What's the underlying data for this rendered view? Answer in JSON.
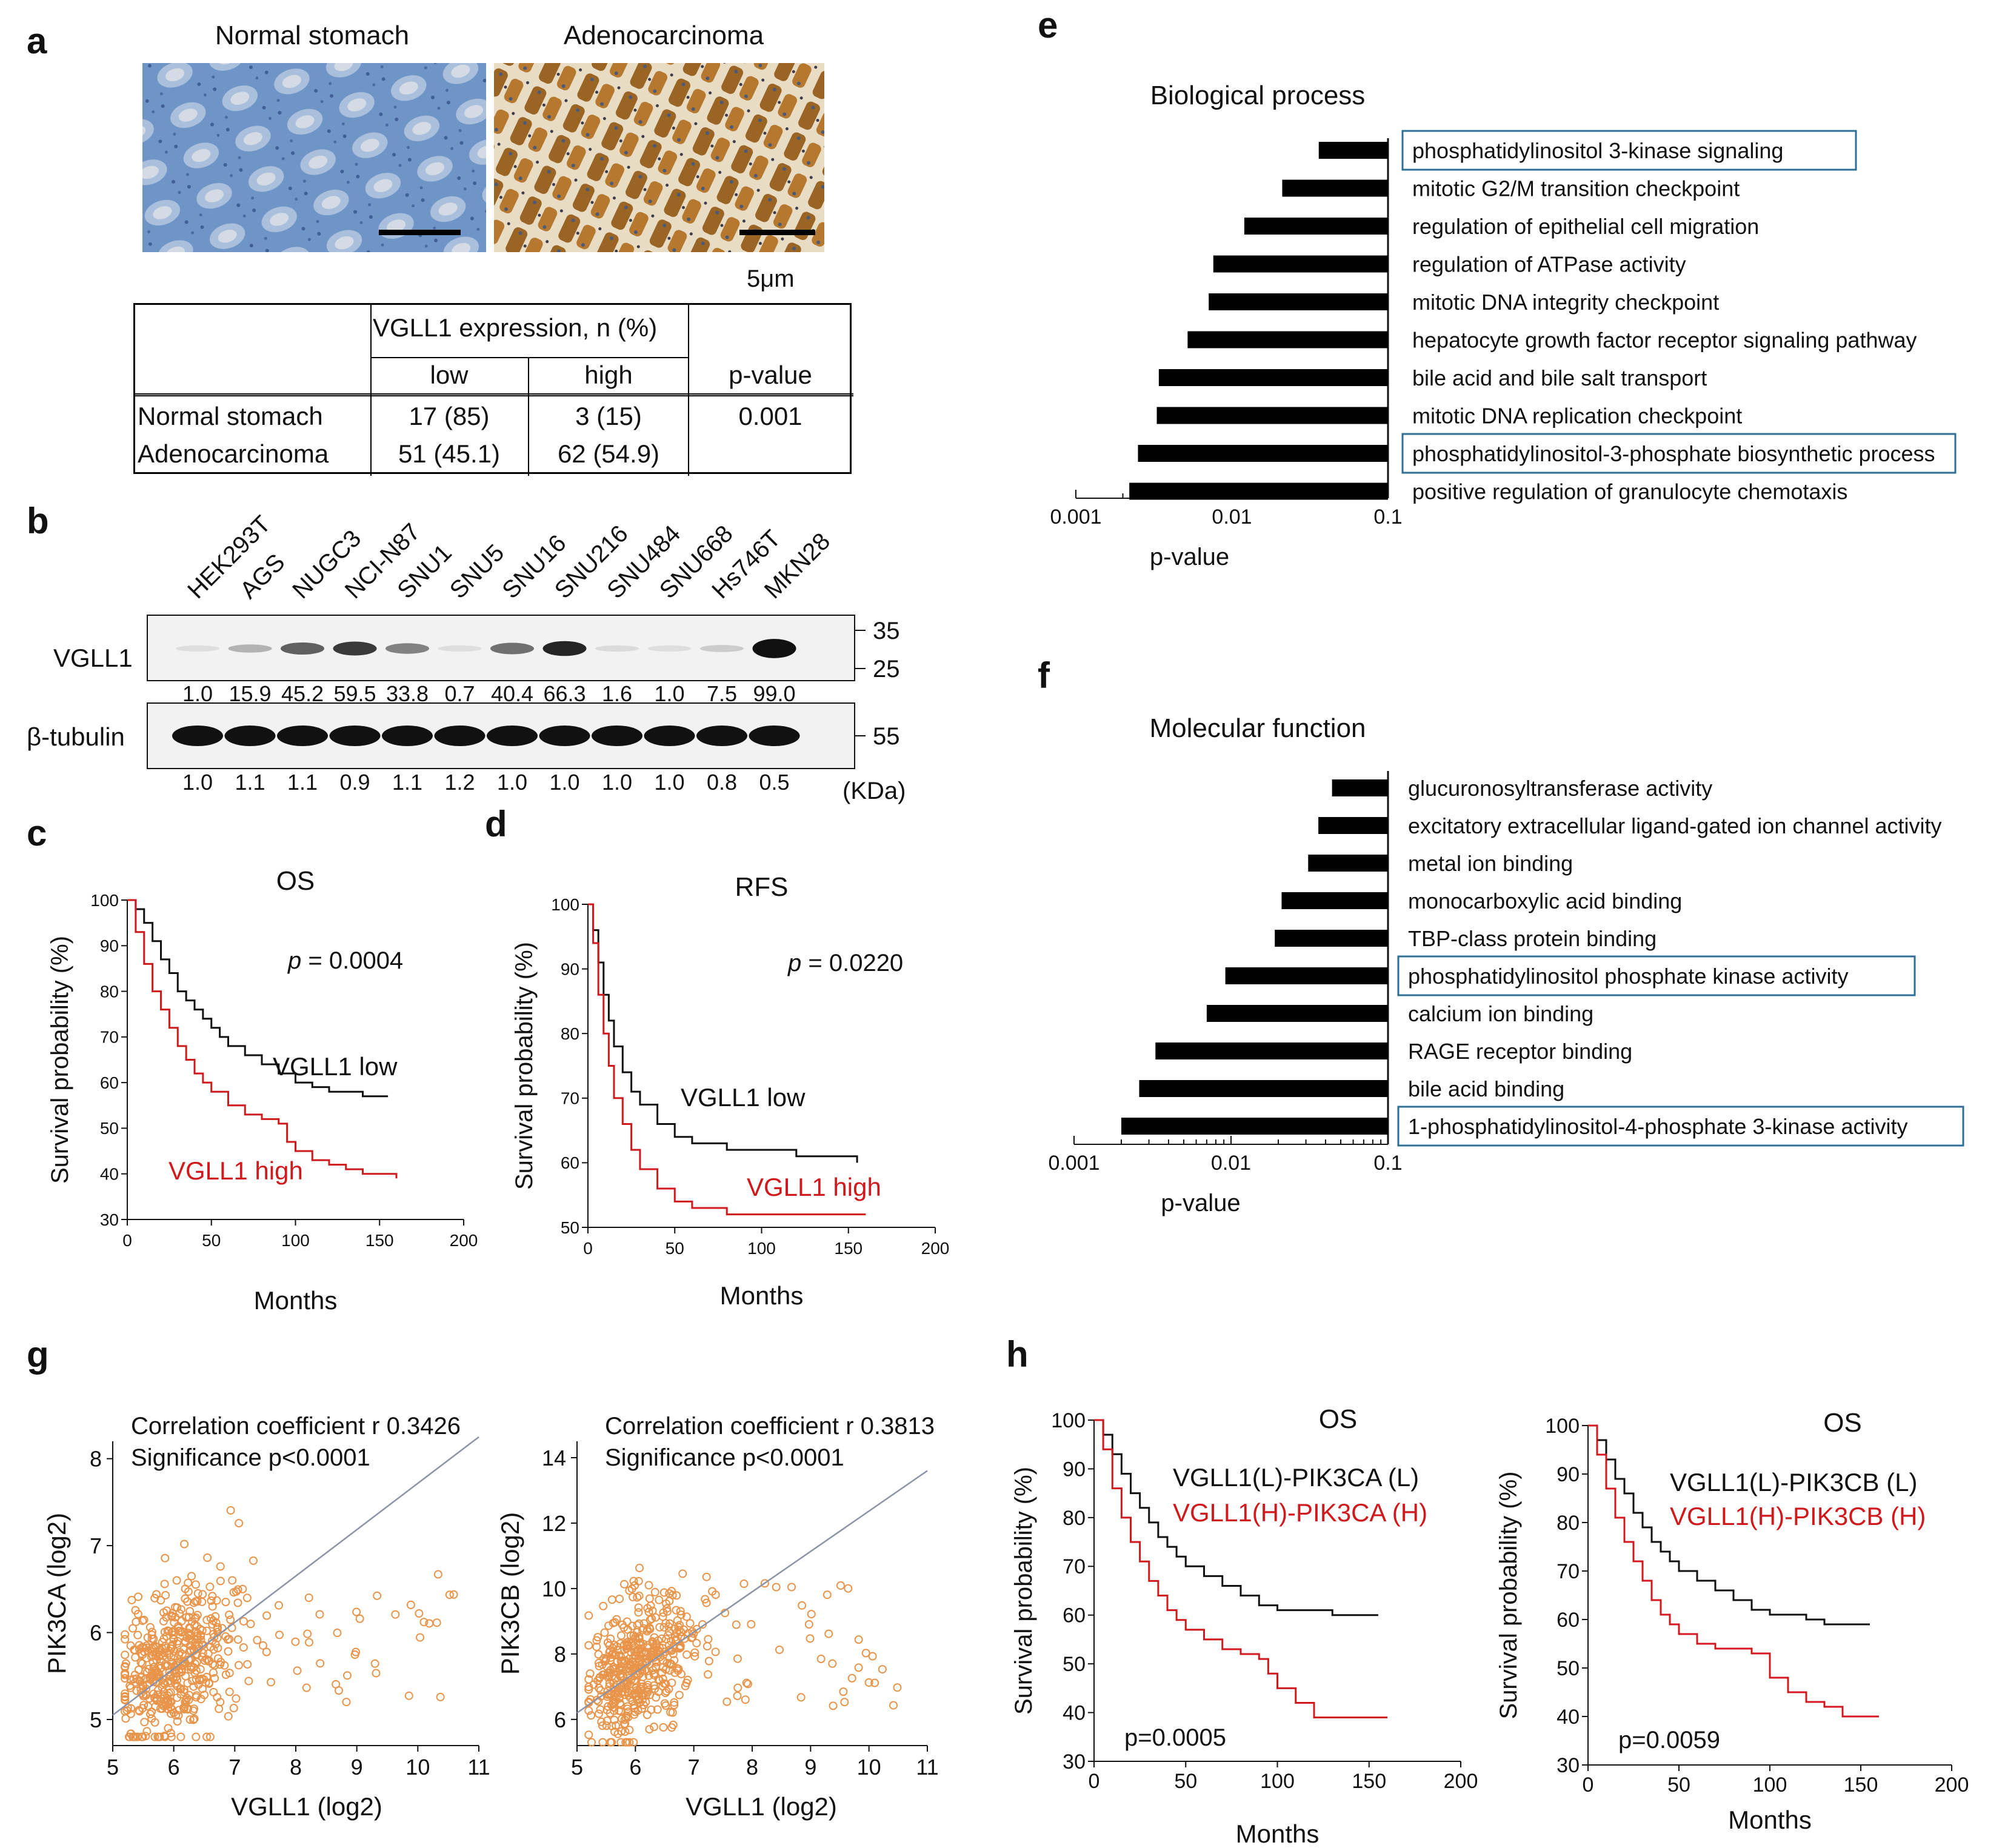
{
  "panels": {
    "a": "a",
    "b": "b",
    "c": "c",
    "d": "d",
    "e": "e",
    "f": "f",
    "g": "g",
    "h": "h"
  },
  "panel_a": {
    "img_left_label": "Normal stomach",
    "img_right_label": "Adenocarcinoma",
    "scale_bar_label": "5μm",
    "table": {
      "group_header": "VGLL1 expression, n (%)",
      "col_low": "low",
      "col_high": "high",
      "col_p": "p-value",
      "rows": [
        {
          "label": "Normal stomach",
          "low": "17 (85)",
          "high": "3 (15)",
          "p": "0.001"
        },
        {
          "label": "Adenocarcinoma",
          "low": "51 (45.1)",
          "high": "62 (54.9)",
          "p": ""
        }
      ]
    }
  },
  "panel_b": {
    "cell_lines": [
      "HEK293T",
      "AGS",
      "NUGC3",
      "NCI-N87",
      "SNU1",
      "SNU5",
      "SNU16",
      "SNU216",
      "SNU484",
      "SNU668",
      "Hs746T",
      "MKN28"
    ],
    "vgll1_label": "VGLL1",
    "tubulin_label": "β-tubulin",
    "vgll1_values": [
      "1.0",
      "15.9",
      "45.2",
      "59.5",
      "33.8",
      "0.7",
      "40.4",
      "66.3",
      "1.6",
      "1.0",
      "7.5",
      "99.0"
    ],
    "tubulin_values": [
      "1.0",
      "1.1",
      "1.1",
      "0.9",
      "1.1",
      "1.2",
      "1.0",
      "1.0",
      "1.0",
      "1.0",
      "0.8",
      "0.5"
    ],
    "mw_markers": [
      "35",
      "25",
      "55"
    ],
    "mw_unit": "(KDa)"
  },
  "colors": {
    "low": "#111111",
    "high": "#d0191c",
    "box": "#2e6f97",
    "scatter": "#e8944a",
    "fit": "#8d93a6"
  },
  "chart_data": [
    {
      "id": "c",
      "type": "line",
      "title": "OS",
      "xlabel": "Months",
      "ylabel": "Survival probability (%)",
      "xlim": [
        0,
        200
      ],
      "ylim": [
        30,
        100
      ],
      "xticks": [
        "0",
        "50",
        "100",
        "150",
        "200"
      ],
      "yticks": [
        "30",
        "40",
        "50",
        "60",
        "70",
        "80",
        "90",
        "100"
      ],
      "pvalue_prefix": "p",
      "pvalue": "= 0.0004",
      "series": [
        {
          "name": "VGLL1 low",
          "x": [
            0,
            5,
            10,
            15,
            20,
            25,
            30,
            35,
            40,
            45,
            50,
            55,
            60,
            70,
            80,
            90,
            100,
            110,
            120,
            130,
            140,
            155
          ],
          "y": [
            100,
            98,
            95,
            91,
            87,
            84,
            80,
            78,
            76,
            74,
            72,
            70,
            68,
            66,
            64,
            62,
            60,
            59,
            58,
            58,
            57,
            57
          ]
        },
        {
          "name": "VGLL1 high",
          "x": [
            0,
            5,
            10,
            15,
            20,
            25,
            30,
            35,
            40,
            45,
            50,
            60,
            70,
            80,
            90,
            95,
            100,
            110,
            120,
            130,
            140,
            160
          ],
          "y": [
            100,
            93,
            86,
            80,
            76,
            72,
            68,
            65,
            62,
            60,
            58,
            55,
            53,
            52,
            51,
            47,
            45,
            43,
            42,
            41,
            40,
            39
          ]
        }
      ]
    },
    {
      "id": "d",
      "type": "line",
      "title": "RFS",
      "xlabel": "Months",
      "ylabel": "Survival probability (%)",
      "xlim": [
        0,
        200
      ],
      "ylim": [
        50,
        100
      ],
      "xticks": [
        "0",
        "50",
        "100",
        "150",
        "200"
      ],
      "yticks": [
        "50",
        "60",
        "70",
        "80",
        "90",
        "100"
      ],
      "pvalue_prefix": "p",
      "pvalue": "= 0.0220",
      "series": [
        {
          "name": "VGLL1 low",
          "x": [
            0,
            3,
            6,
            9,
            12,
            15,
            20,
            25,
            30,
            40,
            50,
            60,
            80,
            100,
            120,
            155
          ],
          "y": [
            100,
            96,
            91,
            86,
            82,
            78,
            74,
            71,
            69,
            66,
            64,
            63,
            62,
            62,
            61,
            60
          ]
        },
        {
          "name": "VGLL1 high",
          "x": [
            0,
            3,
            6,
            9,
            12,
            15,
            20,
            25,
            30,
            40,
            50,
            60,
            80,
            100,
            120,
            160
          ],
          "y": [
            100,
            94,
            86,
            80,
            75,
            70,
            66,
            62,
            59,
            56,
            54,
            53,
            52,
            52,
            52,
            52
          ]
        }
      ]
    },
    {
      "id": "e",
      "type": "bar",
      "title": "Biological process",
      "xlabel": "p-value",
      "xticks": [
        "0.001",
        "0.01",
        "0.1"
      ],
      "xlim": [
        0.001,
        0.1
      ],
      "categories": [
        "phosphatidylinositol 3-kinase signaling",
        "mitotic G2/M transition checkpoint",
        "regulation of epithelial cell migration",
        "regulation of ATPase activity",
        "mitotic DNA integrity checkpoint",
        "hepatocyte growth factor receptor signaling pathway",
        "bile acid and bile salt transport",
        "mitotic DNA replication checkpoint",
        "phosphatidylinositol-3-phosphate biosynthetic process",
        "positive regulation of granulocyte chemotaxis"
      ],
      "values": [
        0.036,
        0.021,
        0.012,
        0.0076,
        0.0071,
        0.0052,
        0.0034,
        0.0033,
        0.0025,
        0.0022
      ],
      "highlighted": [
        0,
        8
      ]
    },
    {
      "id": "f",
      "type": "bar",
      "title": "Molecular function",
      "xlabel": "p-value",
      "xticks": [
        "0.001",
        "0.01",
        "0.1"
      ],
      "xlim": [
        0.001,
        0.1
      ],
      "categories": [
        "glucuronosyltransferase activity",
        "excitatory extracellular ligand-gated ion channel activity",
        "metal ion binding",
        "monocarboxylic acid binding",
        "TBP-class protein binding",
        "phosphatidylinositol phosphate kinase activity",
        "calcium ion binding",
        "RAGE receptor binding",
        "bile acid binding",
        "1-phosphatidylinositol-4-phosphate 3-kinase activity"
      ],
      "values": [
        0.044,
        0.036,
        0.031,
        0.021,
        0.019,
        0.0092,
        0.007,
        0.0033,
        0.0026,
        0.002
      ],
      "highlighted": [
        5,
        9
      ]
    },
    {
      "id": "g1",
      "type": "scatter",
      "xlabel": "VGLL1 (log2)",
      "ylabel": "PIK3CA (log2)",
      "xlim": [
        5,
        11
      ],
      "ylim": [
        4.7,
        8.2
      ],
      "xticks": [
        "5",
        "6",
        "7",
        "8",
        "9",
        "10",
        "11"
      ],
      "yticks": [
        "5",
        "6",
        "7",
        "8"
      ],
      "annotation": [
        "Correlation coefficient r 0.3426",
        "Significance p<0.0001"
      ],
      "fit": {
        "x": [
          5,
          11
        ],
        "y": [
          5.05,
          8.25
        ]
      },
      "cloud": {
        "n": 480,
        "xmean": 6.0,
        "xsd": 0.45,
        "ymean": 5.65,
        "ysd": 0.42,
        "tail_n": 45,
        "tail_x": [
          7.0,
          10.6
        ],
        "tail_y": [
          5.2,
          6.7
        ]
      }
    },
    {
      "id": "g2",
      "type": "scatter",
      "xlabel": "VGLL1 (log2)",
      "ylabel": "PIK3CB (log2)",
      "xlim": [
        5,
        11
      ],
      "ylim": [
        5.2,
        14.5
      ],
      "xticks": [
        "5",
        "6",
        "7",
        "8",
        "9",
        "10",
        "11"
      ],
      "yticks": [
        "6",
        "8",
        "10",
        "12",
        "14"
      ],
      "annotation": [
        "Correlation coefficient r 0.3813",
        "Significance p<0.0001"
      ],
      "fit": {
        "x": [
          5,
          11
        ],
        "y": [
          6.2,
          13.6
        ]
      },
      "cloud": {
        "n": 480,
        "xmean": 6.05,
        "xsd": 0.45,
        "ymean": 7.7,
        "ysd": 1.0,
        "tail_n": 45,
        "tail_x": [
          7.0,
          10.6
        ],
        "tail_y": [
          6.3,
          10.2
        ]
      }
    },
    {
      "id": "h1",
      "type": "line",
      "title": "OS",
      "xlabel": "Months",
      "ylabel": "Survival probability (%)",
      "xlim": [
        0,
        200
      ],
      "ylim": [
        30,
        100
      ],
      "xticks": [
        "0",
        "50",
        "100",
        "150",
        "200"
      ],
      "yticks": [
        "30",
        "40",
        "50",
        "60",
        "70",
        "80",
        "90",
        "100"
      ],
      "pvalue": "p=0.0005",
      "series": [
        {
          "name": "VGLL1(L)-PIK3CA (L)",
          "x": [
            0,
            5,
            10,
            15,
            20,
            25,
            30,
            35,
            40,
            45,
            50,
            60,
            70,
            80,
            90,
            100,
            110,
            120,
            130,
            155
          ],
          "y": [
            100,
            97,
            93,
            89,
            85,
            82,
            79,
            76,
            74,
            72,
            70,
            68,
            66,
            64,
            62,
            61,
            61,
            61,
            60,
            60
          ]
        },
        {
          "name": "VGLL1(H)-PIK3CA (H)",
          "x": [
            0,
            5,
            10,
            15,
            20,
            25,
            30,
            35,
            40,
            45,
            50,
            60,
            70,
            80,
            90,
            95,
            100,
            110,
            120,
            130,
            140,
            160
          ],
          "y": [
            100,
            94,
            86,
            80,
            75,
            71,
            67,
            64,
            61,
            59,
            57,
            55,
            53,
            52,
            51,
            48,
            45,
            42,
            39,
            39,
            39,
            39
          ]
        }
      ]
    },
    {
      "id": "h2",
      "type": "line",
      "title": "OS",
      "xlabel": "Months",
      "ylabel": "Survival probability (%)",
      "xlim": [
        0,
        200
      ],
      "ylim": [
        30,
        100
      ],
      "xticks": [
        "0",
        "50",
        "100",
        "150",
        "200"
      ],
      "yticks": [
        "30",
        "40",
        "50",
        "60",
        "70",
        "80",
        "90",
        "100"
      ],
      "pvalue": "p=0.0059",
      "series": [
        {
          "name": "VGLL1(L)-PIK3CB (L)",
          "x": [
            0,
            5,
            10,
            15,
            20,
            25,
            30,
            35,
            40,
            45,
            50,
            60,
            70,
            80,
            90,
            100,
            110,
            120,
            130,
            155
          ],
          "y": [
            100,
            97,
            93,
            89,
            86,
            82,
            79,
            76,
            74,
            72,
            70,
            68,
            66,
            64,
            62,
            61,
            61,
            60,
            59,
            59
          ]
        },
        {
          "name": "VGLL1(H)-PIK3CB (H)",
          "x": [
            0,
            5,
            10,
            15,
            20,
            25,
            30,
            35,
            40,
            45,
            50,
            60,
            70,
            80,
            90,
            100,
            110,
            120,
            130,
            140,
            160
          ],
          "y": [
            100,
            94,
            87,
            81,
            76,
            72,
            68,
            64,
            61,
            59,
            57,
            55,
            54,
            54,
            53,
            48,
            45,
            43,
            42,
            40,
            40
          ]
        }
      ]
    }
  ]
}
